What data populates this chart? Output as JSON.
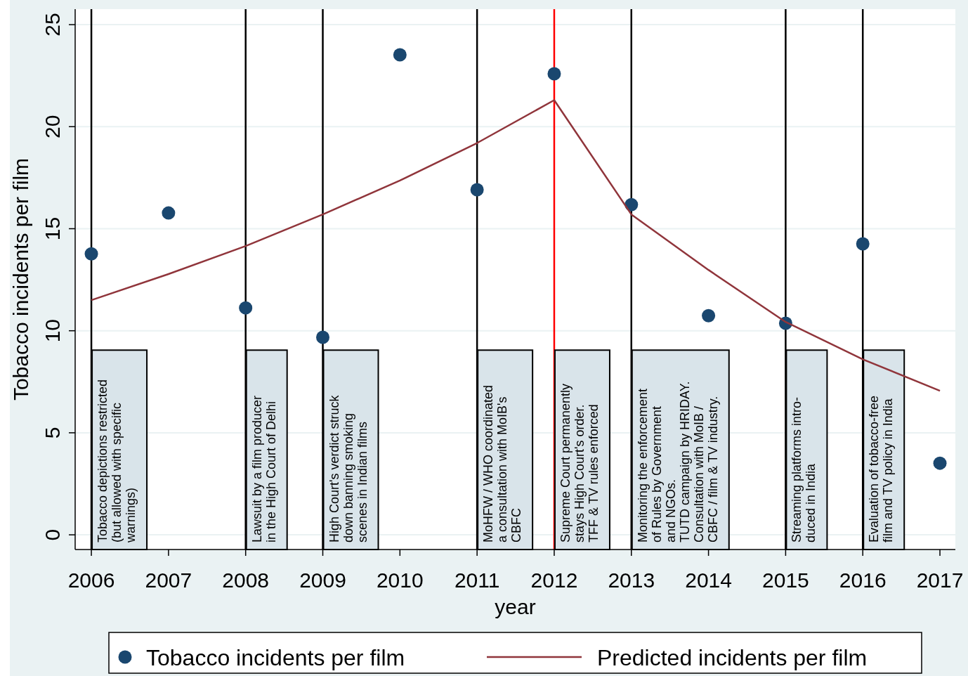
{
  "chart_data": {
    "type": "scatter",
    "xlabel": "year",
    "ylabel": "Tobacco incidents per film",
    "x": [
      2006,
      2007,
      2008,
      2009,
      2010,
      2011,
      2012,
      2013,
      2014,
      2015,
      2016,
      2017
    ],
    "series": [
      {
        "name": "Tobacco incidents per film",
        "color": "#1a476f",
        "values": [
          13.77,
          15.77,
          11.12,
          9.68,
          23.52,
          16.91,
          22.59,
          16.18,
          10.74,
          10.37,
          14.26,
          3.51
        ]
      },
      {
        "name": "Predicted incidents per film",
        "type": "line",
        "marker": "none",
        "color": "#90353b",
        "values": [
          11.5,
          12.78,
          14.15,
          15.7,
          17.36,
          19.2,
          21.3,
          15.7,
          12.98,
          10.43,
          8.6,
          7.06
        ]
      }
    ],
    "xlim": [
      2005.79,
      2017.2
    ],
    "xticks": [
      2006,
      2007,
      2008,
      2009,
      2010,
      2011,
      2012,
      2013,
      2014,
      2015,
      2016,
      2017
    ],
    "ylim": [
      -0.72,
      25.76
    ],
    "yticks": [
      0,
      5,
      10,
      15,
      20,
      25
    ],
    "grid": "y",
    "legend": "bottom",
    "marker": "circle",
    "line_style": "solid",
    "ref_lines": [
      {
        "axis": "x",
        "value": 2006,
        "color": "#000000",
        "label": "Tobacco depictions restricted\n(but allowed with specific\nwarnings)"
      },
      {
        "axis": "x",
        "value": 2008,
        "color": "#000000",
        "label": "Lawsuit by a film producer\nin the High Court of Delhi"
      },
      {
        "axis": "x",
        "value": 2009,
        "color": "#000000",
        "label": "High Court's verdict struck\ndown banning smoking\nscenes in Indian films"
      },
      {
        "axis": "x",
        "value": 2011,
        "color": "#000000",
        "label": "MoHFW / WHO coordinated\na consultation with MoIB's\nCBFC"
      },
      {
        "axis": "x",
        "value": 2012,
        "color": "#ff0000",
        "label": "Supreme Court permanently\nstays High Court's order.\nTFF & TV rules enforced"
      },
      {
        "axis": "x",
        "value": 2013,
        "color": "#000000",
        "label": "Monitoring the enforcement\nof Rules by Government\nand NGOs.\nTUTD campaign by HRIDAY.\nConsultation with MoIB /\nCBFC / film & TV industry."
      },
      {
        "axis": "x",
        "value": 2015,
        "color": "#000000",
        "label": "Streaming platforms intro-\nduced in India"
      },
      {
        "axis": "x",
        "value": 2016,
        "color": "#000000",
        "label": "Evaluation of tobacco-free\nfilm and TV policy in India"
      }
    ]
  }
}
